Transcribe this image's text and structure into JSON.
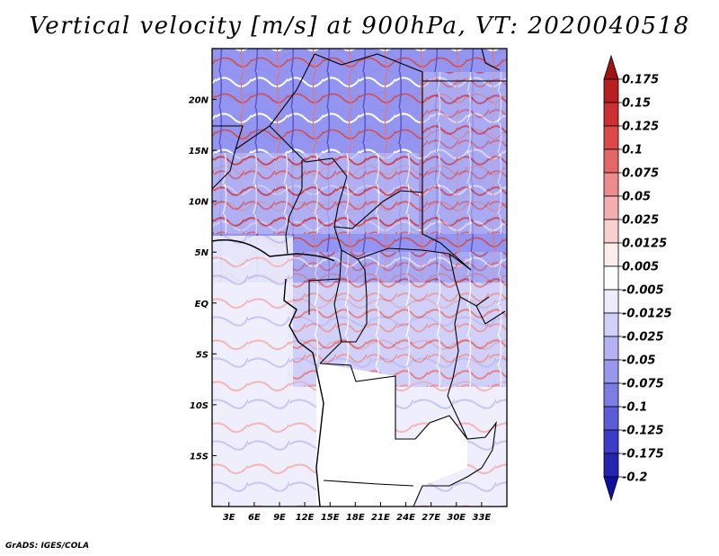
{
  "title": "Vertical velocity [m/s] at 900hPa, VT: 2020040518",
  "footer": "GrADS: IGES/COLA",
  "map": {
    "lon_range": [
      1,
      36
    ],
    "lat_range": [
      -20,
      25
    ],
    "lon_ticks": [
      {
        "value": 3,
        "label": "3E"
      },
      {
        "value": 6,
        "label": "6E"
      },
      {
        "value": 9,
        "label": "9E"
      },
      {
        "value": 12,
        "label": "12E"
      },
      {
        "value": 15,
        "label": "15E"
      },
      {
        "value": 18,
        "label": "18E"
      },
      {
        "value": 21,
        "label": "21E"
      },
      {
        "value": 24,
        "label": "24E"
      },
      {
        "value": 27,
        "label": "27E"
      },
      {
        "value": 30,
        "label": "30E"
      },
      {
        "value": 33,
        "label": "33E"
      }
    ],
    "lat_ticks": [
      {
        "value": 20,
        "label": "20N"
      },
      {
        "value": 15,
        "label": "15N"
      },
      {
        "value": 10,
        "label": "10N"
      },
      {
        "value": 5,
        "label": "5N"
      },
      {
        "value": 0,
        "label": "EQ"
      },
      {
        "value": -5,
        "label": "5S"
      },
      {
        "value": -10,
        "label": "10S"
      },
      {
        "value": -15,
        "label": "15S"
      }
    ]
  },
  "colorbar": {
    "labels": [
      "0.175",
      "0.15",
      "0.125",
      "0.1",
      "0.075",
      "0.05",
      "0.025",
      "0.0125",
      "0.005",
      "-0.005",
      "-0.0125",
      "-0.025",
      "-0.05",
      "-0.075",
      "-0.1",
      "-0.125",
      "-0.175",
      "-0.2"
    ],
    "colors": [
      "#a01414",
      "#b82020",
      "#cc3030",
      "#dc4848",
      "#e46868",
      "#ec8c8c",
      "#f4b0b0",
      "#f8d0d0",
      "#fcecec",
      "#ffffff",
      "#ececfc",
      "#d0d0f8",
      "#b4b4f4",
      "#9898ec",
      "#7c7ce4",
      "#5c5cd8",
      "#3c3cc8",
      "#2424b0",
      "#1010a0"
    ]
  }
}
